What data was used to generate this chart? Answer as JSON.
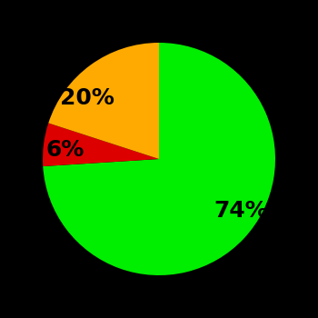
{
  "slices": [
    74,
    6,
    20
  ],
  "colors": [
    "#00ee00",
    "#dd0000",
    "#ffaa00"
  ],
  "labels": [
    "74%",
    "6%",
    "20%"
  ],
  "background_color": "#000000",
  "startangle": 90,
  "figsize": [
    3.5,
    3.5
  ],
  "dpi": 100,
  "text_fontsize": 18,
  "text_fontweight": "bold",
  "labeldistance": 0.65
}
